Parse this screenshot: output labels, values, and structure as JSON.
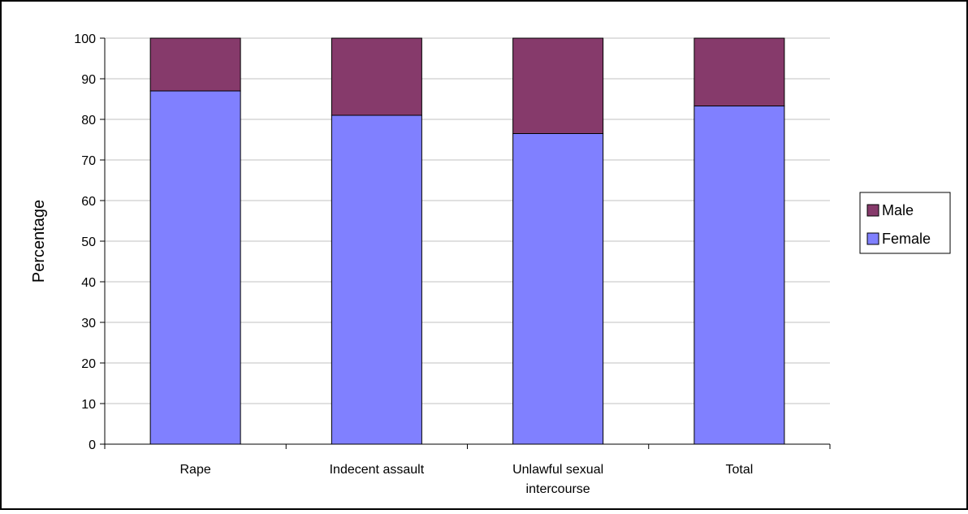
{
  "chart_data": {
    "type": "bar",
    "stacked": true,
    "categories": [
      "Rape",
      "Indecent assault",
      "Unlawful sexual intercourse",
      "Total"
    ],
    "category_lines": [
      [
        "Rape"
      ],
      [
        "Indecent assault"
      ],
      [
        "Unlawful sexual",
        "intercourse"
      ],
      [
        "Total"
      ]
    ],
    "series": [
      {
        "name": "Female",
        "values": [
          87,
          81,
          76.5,
          83.3
        ],
        "color": "#8080ff"
      },
      {
        "name": "Male",
        "values": [
          13,
          19,
          23.5,
          16.7
        ],
        "color": "#863a6b"
      }
    ],
    "title": "",
    "xlabel": "",
    "ylabel": "Percentage",
    "ylim": [
      0,
      100
    ],
    "yticks": [
      0,
      10,
      20,
      30,
      40,
      50,
      60,
      70,
      80,
      90,
      100
    ],
    "grid": true,
    "legend": {
      "placement": "right",
      "entries": [
        "Male",
        "Female"
      ]
    }
  }
}
